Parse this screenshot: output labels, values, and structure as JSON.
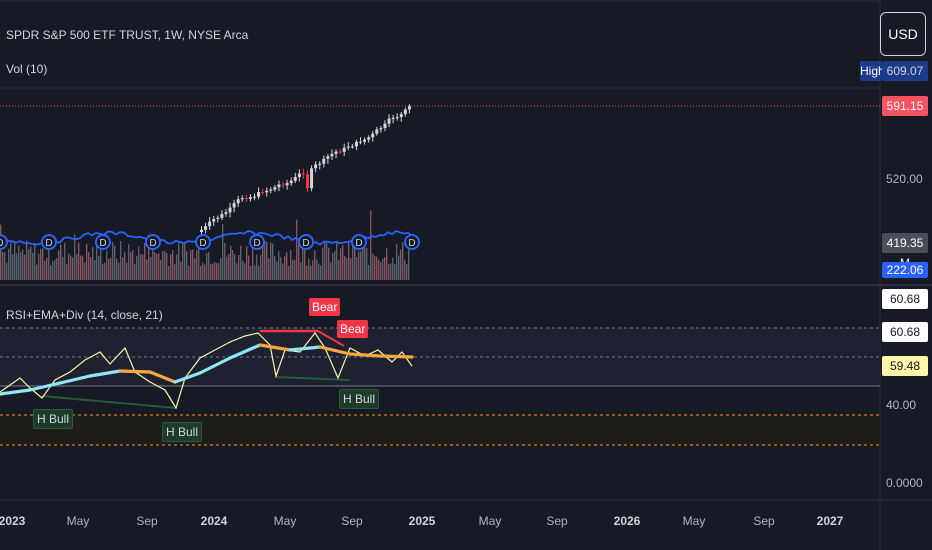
{
  "header": {
    "symbol_title": "SPDR S&P 500 ETF TRUST, 1W, NYSE Arca",
    "vol_label": "Vol (10)",
    "rsi_label": "RSI+EMA+Div (14, close, 21)"
  },
  "currency_button": "USD",
  "price_axis": {
    "high_tag_label": "High",
    "high_value": "609.07",
    "last_price": "591.15",
    "tick_520": "520.00",
    "vol_value": "419.35 M",
    "vol_ma_value": "222.06 M"
  },
  "rsi_axis": {
    "v1": "60.68",
    "v2": "60.68",
    "v3": "59.48",
    "tick_40": "40.00",
    "tick_0": "0.0000"
  },
  "x_axis": {
    "labels": [
      "2023",
      "May",
      "Sep",
      "2024",
      "May",
      "Sep",
      "2025",
      "May",
      "Sep",
      "2026",
      "May",
      "Sep",
      "2027"
    ]
  },
  "annotations": {
    "bear": "Bear",
    "h_bull": "H Bull",
    "dividend": "D"
  },
  "colors": {
    "background": "#161a25",
    "up": "#d1d4dc",
    "down": "#f23645",
    "last_price": "#f7525f",
    "vol_ma": "#2962ff",
    "rsi_line": "#fff4a8",
    "ema_rising": "#8ee6f7",
    "ema_falling": "#f7a640",
    "band": "#ff9800"
  }
}
